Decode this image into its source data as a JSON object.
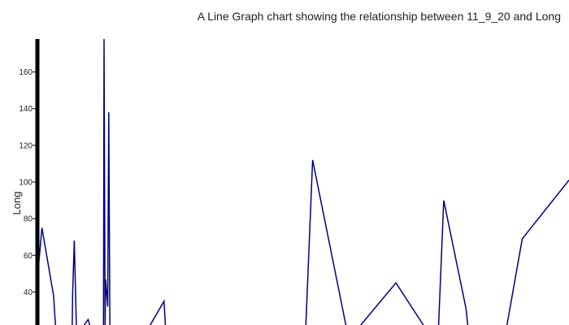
{
  "chart_data": {
    "type": "line",
    "title": "A Line Graph chart showing the relationship between 11_9_20 and Long",
    "xlabel": "",
    "ylabel": "Long",
    "y_ticks": [
      40,
      60,
      80,
      100,
      120,
      140,
      160
    ],
    "ylim": [
      22,
      178
    ],
    "xlim": [
      0,
      100
    ],
    "grid": false,
    "line_color": "#000080",
    "axis_color": "#000000",
    "series": [
      {
        "points": [
          [
            0,
            52
          ],
          [
            0.7,
            75
          ],
          [
            2.9,
            38
          ],
          [
            3.3,
            20
          ],
          [
            6.4,
            20
          ],
          [
            6.5,
            40
          ],
          [
            6.8,
            68
          ],
          [
            7.2,
            20
          ],
          [
            8.2,
            20
          ],
          [
            9.4,
            25
          ],
          [
            9.9,
            20
          ],
          [
            12.3,
            20
          ],
          [
            12.4,
            178
          ],
          [
            12.6,
            20
          ],
          [
            12.7,
            47
          ],
          [
            13.1,
            32
          ],
          [
            13.3,
            138
          ],
          [
            13.5,
            20
          ],
          [
            20.7,
            20
          ],
          [
            23.7,
            35
          ],
          [
            24.0,
            20
          ],
          [
            50.4,
            20
          ],
          [
            51.7,
            112
          ],
          [
            58.1,
            20
          ],
          [
            60.2,
            20
          ],
          [
            67.4,
            45
          ],
          [
            73.0,
            20
          ],
          [
            75.4,
            20
          ],
          [
            76.4,
            90
          ],
          [
            80.6,
            31
          ],
          [
            81.0,
            20
          ],
          [
            88.2,
            20
          ],
          [
            91.2,
            69
          ],
          [
            100,
            101
          ]
        ]
      }
    ]
  }
}
